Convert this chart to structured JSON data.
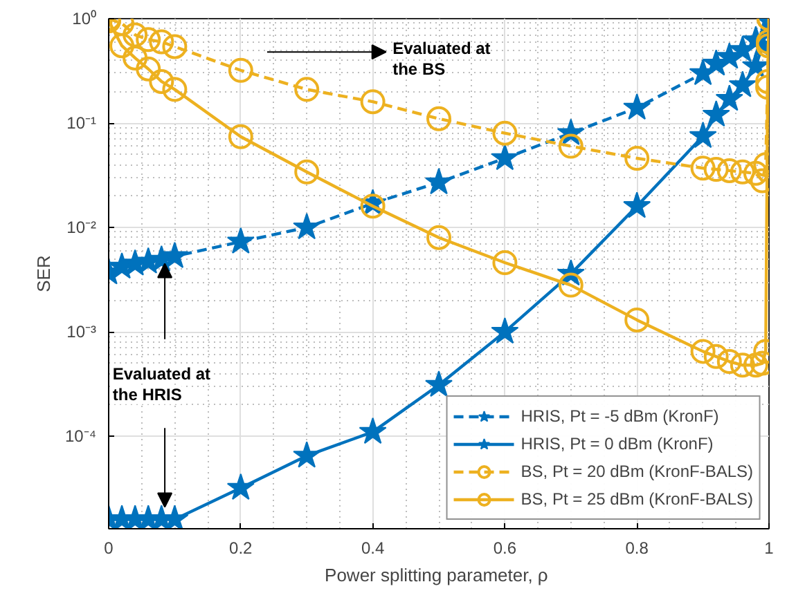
{
  "chart_data": {
    "type": "line",
    "xlabel": "Power splitting parameter,  ρ",
    "ylabel": "SER",
    "log": "y",
    "grid": true,
    "legend": "bottom right",
    "xlim": [
      0,
      1
    ],
    "xticks": [
      0,
      0.2,
      0.4,
      0.6,
      0.8,
      1
    ],
    "ylim": [
      1.3e-05,
      1
    ],
    "yticks": [
      {
        "value": 0.0001,
        "label": "10⁻⁴"
      },
      {
        "value": 0.001,
        "label": "10⁻³"
      },
      {
        "value": 0.01,
        "label": "10⁻²"
      },
      {
        "value": 0.1,
        "label": "10⁻¹"
      },
      {
        "value": 1,
        "label": "10⁰"
      }
    ],
    "annotations": [
      "Evaluated at the BS",
      "Evaluated at the HRIS"
    ],
    "series": [
      {
        "name": "HRIS, Pt = -5 dBm (KronF)",
        "color": "#0072bd",
        "marker": "star",
        "line_style": "dashed",
        "x": [
          0,
          0.02,
          0.04,
          0.06,
          0.08,
          0.1,
          0.2,
          0.3,
          0.4,
          0.5,
          0.6,
          0.7,
          0.8,
          0.9,
          0.92,
          0.94,
          0.96,
          0.98,
          1
        ],
        "values": [
          0.0037,
          0.0042,
          0.0045,
          0.0047,
          0.0049,
          0.0053,
          0.0073,
          0.01,
          0.017,
          0.027,
          0.046,
          0.08,
          0.14,
          0.3,
          0.37,
          0.43,
          0.5,
          0.62,
          0.95
        ]
      },
      {
        "name": "HRIS, Pt = 0 dBm (KronF)",
        "color": "#0072bd",
        "marker": "star",
        "line_style": "solid",
        "x": [
          0,
          0.02,
          0.04,
          0.06,
          0.08,
          0.1,
          0.2,
          0.3,
          0.4,
          0.5,
          0.6,
          0.7,
          0.8,
          0.9,
          0.92,
          0.94,
          0.96,
          0.98,
          0.99,
          1
        ],
        "values": [
          1.6e-05,
          1.6e-05,
          1.6e-05,
          1.6e-05,
          1.6e-05,
          1.6e-05,
          3.2e-05,
          6.5e-05,
          0.00011,
          0.00031,
          0.001,
          0.0036,
          0.016,
          0.075,
          0.12,
          0.17,
          0.23,
          0.35,
          0.55,
          1
        ]
      },
      {
        "name": "BS, Pt = 20 dBm (KronF-BALS)",
        "color": "#edb120",
        "marker": "circle",
        "line_style": "dashed",
        "x": [
          0,
          0.02,
          0.04,
          0.06,
          0.08,
          0.1,
          0.2,
          0.3,
          0.4,
          0.5,
          0.6,
          0.7,
          0.8,
          0.9,
          0.92,
          0.94,
          0.96,
          0.98,
          0.99,
          0.995,
          0.998,
          0.999,
          1
        ],
        "values": [
          1.0,
          0.9,
          0.7,
          0.63,
          0.6,
          0.54,
          0.32,
          0.21,
          0.16,
          0.11,
          0.08,
          0.06,
          0.046,
          0.037,
          0.036,
          0.035,
          0.034,
          0.033,
          0.028,
          0.04,
          0.25,
          0.6,
          1.0
        ]
      },
      {
        "name": "BS, Pt = 25 dBm (KronF-BALS)",
        "color": "#edb120",
        "marker": "circle",
        "line_style": "solid",
        "x": [
          0,
          0.02,
          0.04,
          0.06,
          0.08,
          0.1,
          0.2,
          0.3,
          0.4,
          0.5,
          0.6,
          0.7,
          0.8,
          0.9,
          0.92,
          0.94,
          0.96,
          0.98,
          0.99,
          0.995,
          0.998,
          0.999,
          1
        ],
        "values": [
          0.95,
          0.55,
          0.42,
          0.33,
          0.25,
          0.21,
          0.074,
          0.034,
          0.016,
          0.008,
          0.0046,
          0.0028,
          0.0013,
          0.00065,
          0.00058,
          0.00052,
          0.00048,
          0.00048,
          0.0005,
          0.00065,
          0.22,
          0.55,
          1.0
        ]
      }
    ]
  }
}
